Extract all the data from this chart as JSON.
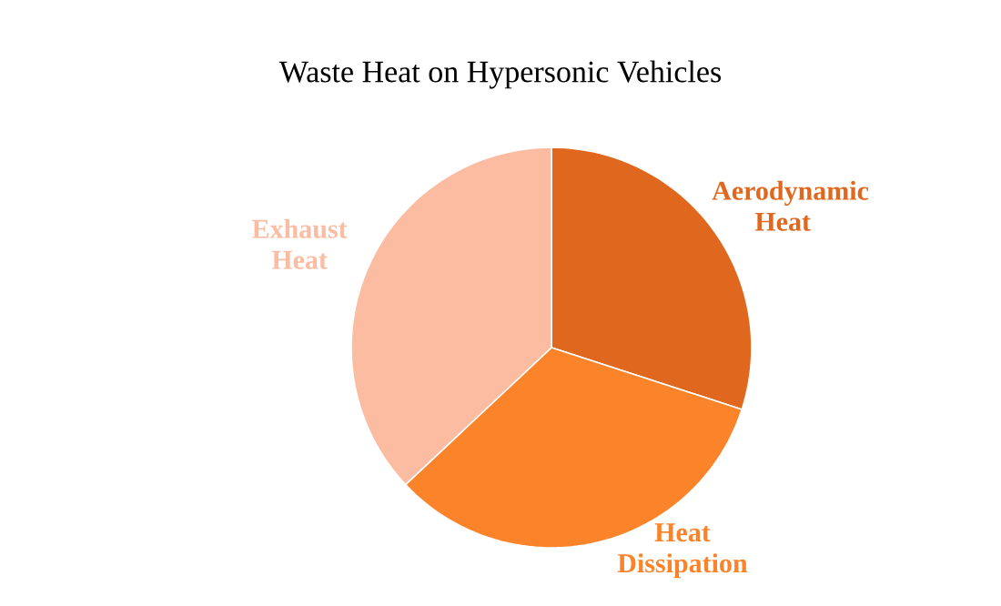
{
  "chart_data": {
    "type": "pie",
    "title": "Waste Heat on Hypersonic Vehicles",
    "categories": [
      "Aerodynamic Heat",
      "Heat Dissipation",
      "Exhaust Heat"
    ],
    "values": [
      30,
      33,
      37
    ],
    "colors": [
      "#e0681e",
      "#fb842a",
      "#fbbca2"
    ]
  }
}
